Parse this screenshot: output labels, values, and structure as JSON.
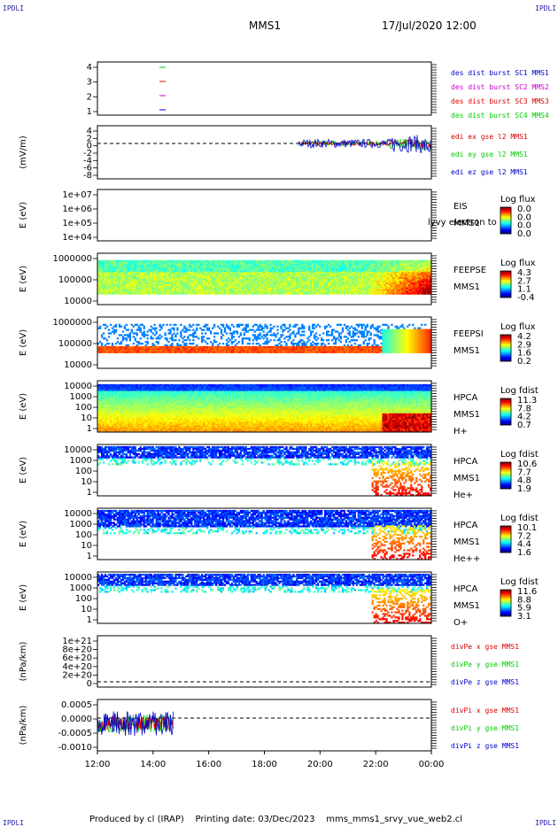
{
  "corners": {
    "tl": "IPDLI",
    "tr": "IPDLI",
    "bl": "IPDLI",
    "br": "IPDLI"
  },
  "header": {
    "title": "MMS1",
    "date": "17/Jul/2020 12:00"
  },
  "footer": {
    "text": "Produced by cl (IRAP)    Printing date: 03/Dec/2023    mms_mms1_srvy_vue_web2.cl"
  },
  "colors": {
    "red": "#dd0000",
    "green": "#00cc00",
    "blue": "#0000cc",
    "magenta": "#cc00cc"
  },
  "chart_data": [
    {
      "type": "line",
      "panel": "dist",
      "yticks": [
        "4",
        "3",
        "2",
        "1"
      ],
      "legend": [
        {
          "text": "des dist burst SC1 MMS1",
          "color": "#0000cc"
        },
        {
          "text": "des dist burst SC2 MMS2",
          "color": "#cc00cc"
        },
        {
          "text": "des dist burst SC3 MMS3",
          "color": "#dd0000"
        },
        {
          "text": "des dist burst SC4 MMS4",
          "color": "#00cc00"
        }
      ]
    },
    {
      "type": "line",
      "panel": "edi",
      "ylabel": "(mV/m)",
      "yticks": [
        "4",
        "2",
        "0",
        "-2",
        "-4",
        "-6",
        "-8"
      ],
      "legend": [
        {
          "text": "edi ex gse l2 MMS1",
          "color": "#dd0000"
        },
        {
          "text": "edi ey gse l2 MMS1",
          "color": "#00cc00"
        },
        {
          "text": "edi ez gse l2 MMS1",
          "color": "#0000cc"
        }
      ]
    },
    {
      "type": "heatmap",
      "panel": "eis",
      "ylabel": "E (eV)",
      "yticks": [
        "1e+07",
        "1e+06",
        "1e+05",
        "1e+04"
      ],
      "right": [
        "EIS",
        "MMS1"
      ],
      "overlay": "lyvy electron to",
      "cbar_title": "Log flux",
      "cbar_ticks": [
        "0.0",
        "0.0",
        "0.0",
        "0.0"
      ]
    },
    {
      "type": "heatmap",
      "panel": "feepse",
      "ylabel": "E (eV)",
      "yticks": [
        "1000000",
        "100000",
        "10000"
      ],
      "right": [
        "FEEPSE",
        "MMS1"
      ],
      "cbar_title": "Log flux",
      "cbar_ticks": [
        "4.3",
        "2.7",
        "1.1",
        "-0.4"
      ]
    },
    {
      "type": "heatmap",
      "panel": "feepsi",
      "ylabel": "E (eV)",
      "yticks": [
        "1000000",
        "100000",
        "10000"
      ],
      "right": [
        "FEEPSI",
        "MMS1"
      ],
      "cbar_title": "Log flux",
      "cbar_ticks": [
        "4.2",
        "2.9",
        "1.6",
        "0.2"
      ]
    },
    {
      "type": "heatmap",
      "panel": "hpca_h",
      "ylabel": "E (eV)",
      "yticks": [
        "10000",
        "1000",
        "100",
        "10",
        "1"
      ],
      "right": [
        "HPCA",
        "MMS1",
        "H+"
      ],
      "cbar_title": "Log fdist",
      "cbar_ticks": [
        "11.3",
        "7.8",
        "4.2",
        "0.7"
      ]
    },
    {
      "type": "heatmap",
      "panel": "hpca_he",
      "ylabel": "E (eV)",
      "yticks": [
        "10000",
        "1000",
        "100",
        "10",
        "1"
      ],
      "right": [
        "HPCA",
        "MMS1",
        "He+"
      ],
      "cbar_title": "Log fdist",
      "cbar_ticks": [
        "10.6",
        "7.7",
        "4.8",
        "1.9"
      ]
    },
    {
      "type": "heatmap",
      "panel": "hpca_hepp",
      "ylabel": "E (eV)",
      "yticks": [
        "10000",
        "1000",
        "100",
        "10",
        "1"
      ],
      "right": [
        "HPCA",
        "MMS1",
        "He++"
      ],
      "cbar_title": "Log fdist",
      "cbar_ticks": [
        "10.1",
        "7.2",
        "4.4",
        "1.6"
      ]
    },
    {
      "type": "heatmap",
      "panel": "hpca_o",
      "ylabel": "E (eV)",
      "yticks": [
        "10000",
        "1000",
        "100",
        "10",
        "1"
      ],
      "right": [
        "HPCA",
        "MMS1",
        "O+"
      ],
      "cbar_title": "Log fdist",
      "cbar_ticks": [
        "11.6",
        "8.8",
        "5.9",
        "3.1"
      ]
    },
    {
      "type": "line",
      "panel": "divpe",
      "ylabel": "(nPa/km)",
      "yticks": [
        "1e+21",
        "8e+20",
        "6e+20",
        "4e+20",
        "2e+20",
        "0"
      ],
      "legend": [
        {
          "text": "divPe x gse MMS1",
          "color": "#dd0000"
        },
        {
          "text": "divPe y gse MMS1",
          "color": "#00cc00"
        },
        {
          "text": "divPe z gse MMS1",
          "color": "#0000cc"
        }
      ]
    },
    {
      "type": "line",
      "panel": "divpi",
      "ylabel": "(nPa/km)",
      "yticks": [
        "0.0005",
        "0.0000",
        "-0.0005",
        "-0.0010"
      ],
      "legend": [
        {
          "text": "divPi x gse MMS1",
          "color": "#dd0000"
        },
        {
          "text": "divPi y gse MMS1",
          "color": "#00cc00"
        },
        {
          "text": "divPi z gse MMS1",
          "color": "#0000cc"
        }
      ]
    }
  ],
  "xaxis": {
    "ticks": [
      "12:00",
      "14:00",
      "16:00",
      "18:00",
      "20:00",
      "22:00",
      "00:00"
    ]
  }
}
